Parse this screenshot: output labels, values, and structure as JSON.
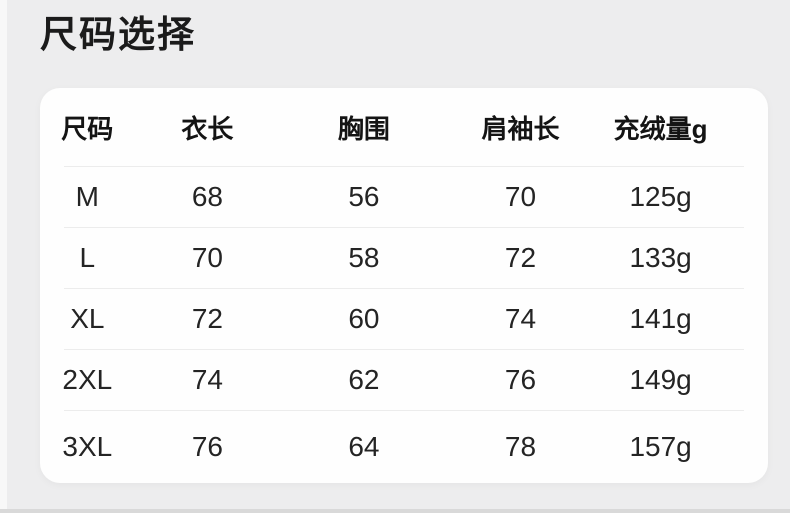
{
  "page": {
    "title": "尺码选择"
  },
  "colors": {
    "background": "#ededee",
    "card": "#fefefe",
    "divider": "#ececec",
    "title_text": "#1b1b1b",
    "header_text": "#141414",
    "value_text": "#242424",
    "bottom_edge": "#d9d9d9",
    "left_edge": "#f8f8f8"
  },
  "size_table": {
    "columns": [
      "尺码",
      "衣长",
      "胸围",
      "肩袖长",
      "充绒量g"
    ],
    "rows": [
      [
        "M",
        "68",
        "56",
        "70",
        "125g"
      ],
      [
        "L",
        "70",
        "58",
        "72",
        "133g"
      ],
      [
        "XL",
        "72",
        "60",
        "74",
        "141g"
      ],
      [
        "2XL",
        "74",
        "62",
        "76",
        "149g"
      ],
      [
        "3XL",
        "76",
        "64",
        "78",
        "157g"
      ]
    ]
  }
}
